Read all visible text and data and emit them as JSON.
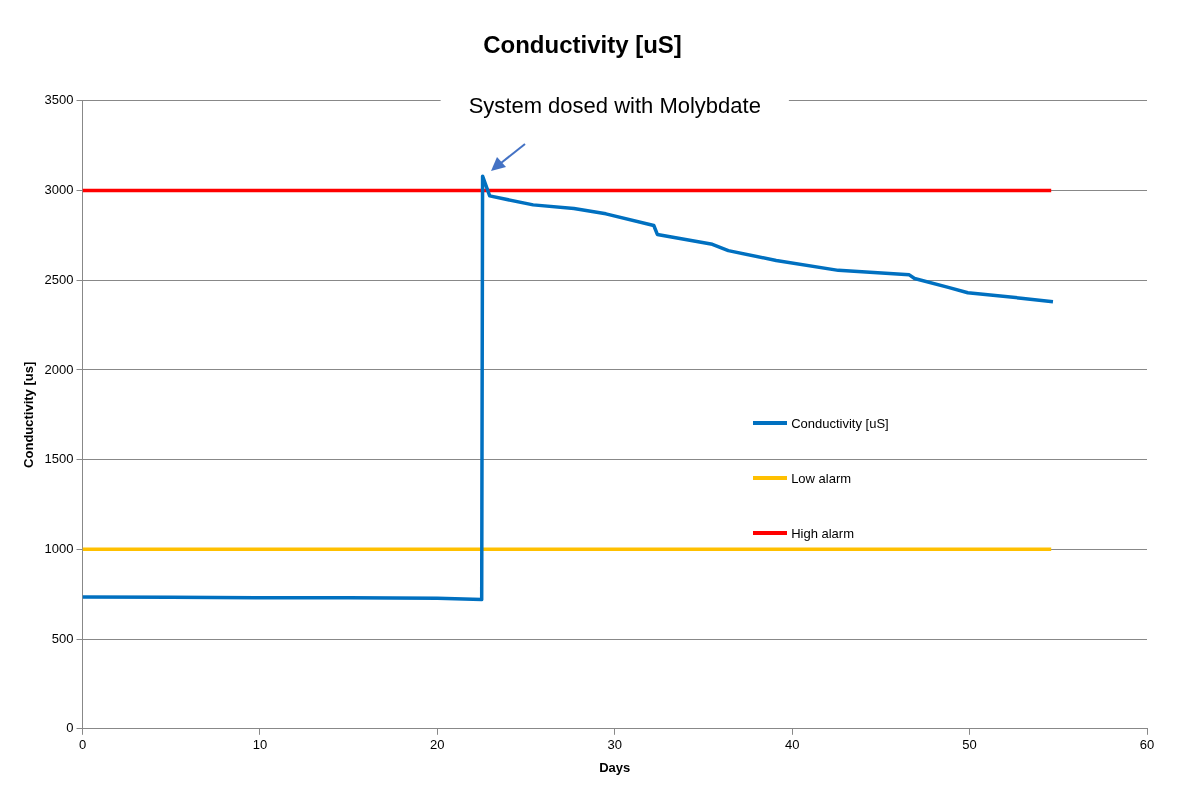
{
  "chart_data": {
    "type": "line",
    "title": "Conductivity [uS]",
    "xlabel": "Days",
    "ylabel": "Conductivity [us]",
    "xlim": [
      0,
      60
    ],
    "xticks": [
      0,
      10,
      20,
      30,
      40,
      50,
      60
    ],
    "ylim": [
      0,
      3500
    ],
    "yticks": [
      0,
      500,
      1000,
      1500,
      2000,
      2500,
      3000,
      3500
    ],
    "grid": "y",
    "legend": "right",
    "marker": "none",
    "line_style": "solid",
    "annotations": [
      {
        "text": "System dosed with Molybdate",
        "x": 22.55,
        "y": 3080
      }
    ],
    "series": [
      {
        "name": "Conductivity [uS]",
        "color": "#0070c0",
        "x": [
          0,
          5,
          10,
          15,
          20,
          22.5,
          22.55,
          22.95,
          25.4,
          27.7,
          29.5,
          32.2,
          32.4,
          35.5,
          36.4,
          39.1,
          42.6,
          46.6,
          46.9,
          48.8,
          49.9,
          52.9,
          54.7
        ],
        "values": [
          735,
          733,
          730,
          730,
          728,
          720,
          3080,
          2970,
          2920,
          2900,
          2870,
          2805,
          2755,
          2700,
          2665,
          2610,
          2555,
          2530,
          2510,
          2460,
          2430,
          2400,
          2380
        ]
      },
      {
        "name": "Low alarm",
        "color": "#ffc000",
        "x": [
          0,
          54.6
        ],
        "values": [
          1000,
          1000
        ]
      },
      {
        "name": "High alarm",
        "color": "#ff0000",
        "x": [
          0,
          54.6
        ],
        "values": [
          3000,
          3000
        ]
      }
    ]
  }
}
